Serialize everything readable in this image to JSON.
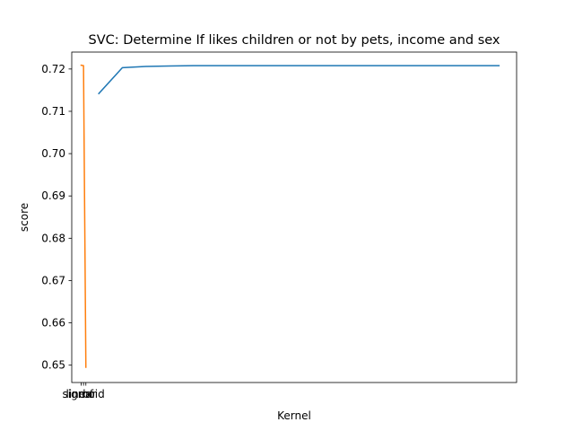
{
  "chart_data": {
    "type": "line",
    "title": "SVC: Determine If likes children or not by pets, income and sex",
    "xlabel": "Kernel",
    "ylabel": "score",
    "ylim": [
      0.6459,
      0.724
    ],
    "yticks": [
      0.65,
      0.66,
      0.67,
      0.68,
      0.69,
      0.7,
      0.71,
      0.72
    ],
    "ytick_labels": [
      "0.65",
      "0.66",
      "0.67",
      "0.68",
      "0.69",
      "0.70",
      "0.71",
      "0.72"
    ],
    "xlim": [
      -0.8,
      37
    ],
    "categories": [
      "linear",
      "sigmoid",
      "rbf"
    ],
    "category_positions": [
      0,
      0.2,
      0.4
    ],
    "grid": false,
    "series": [
      {
        "color": "#1f77b4",
        "x": [
          1.5,
          3.5,
          5.5,
          7.5,
          9.5,
          12,
          15,
          20,
          25,
          30,
          35.5
        ],
        "y": [
          0.7142,
          0.7203,
          0.7206,
          0.7207,
          0.7208,
          0.7208,
          0.7208,
          0.7208,
          0.7208,
          0.7208,
          0.7208
        ]
      },
      {
        "color": "#ff7f0e",
        "x": [
          0,
          0.2,
          0.4
        ],
        "y": [
          0.7209,
          0.7208,
          0.6495
        ]
      }
    ]
  }
}
